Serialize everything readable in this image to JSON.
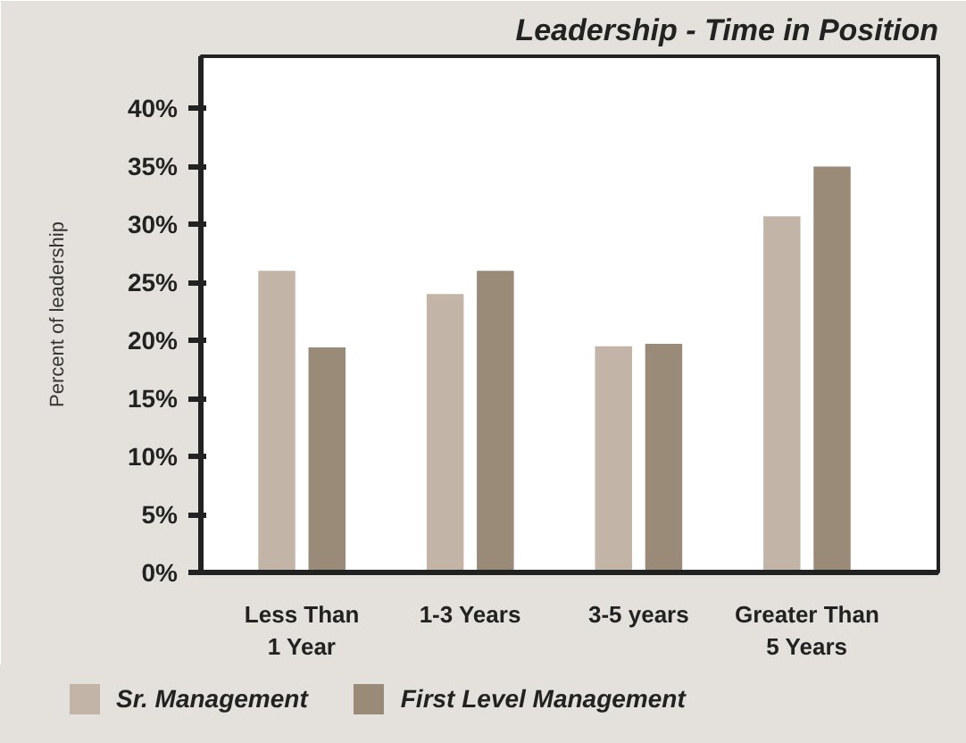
{
  "chart_data": {
    "type": "bar",
    "title": "Leadership - Time in Position",
    "ylabel": "Percent of leadership",
    "categories": [
      "Less Than\n1 Year",
      "1-3 Years",
      "3-5 years",
      "Greater Than\n5 Years"
    ],
    "series": [
      {
        "name": "Sr. Management",
        "color": "#c2b5a7",
        "values": [
          26,
          24,
          19.5,
          30.7
        ]
      },
      {
        "name": "First Level Management",
        "color": "#9a8a78",
        "values": [
          19.4,
          26,
          19.7,
          35
        ]
      }
    ],
    "ylim": [
      0,
      44.5
    ],
    "yticks": [
      {
        "value": 0,
        "label": "0%"
      },
      {
        "value": 5,
        "label": "5%"
      },
      {
        "value": 10,
        "label": "10%"
      },
      {
        "value": 15,
        "label": "15%"
      },
      {
        "value": 20,
        "label": "20%"
      },
      {
        "value": 25,
        "label": "25%"
      },
      {
        "value": 30,
        "label": "30%"
      },
      {
        "value": 35,
        "label": "35%"
      },
      {
        "value": 40,
        "label": "40%"
      }
    ],
    "legend": "bottom left"
  }
}
